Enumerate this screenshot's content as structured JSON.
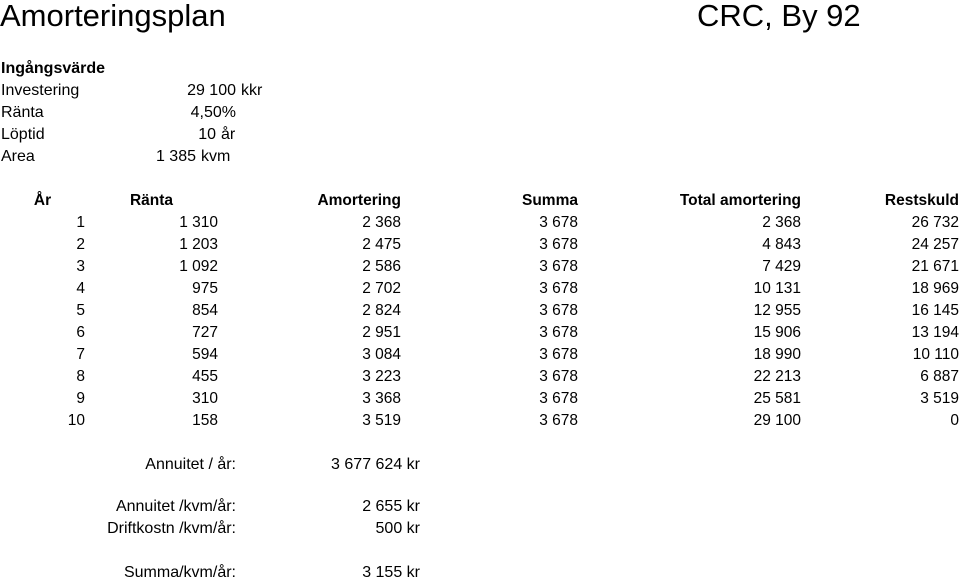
{
  "header": {
    "title": "Amorteringsplan",
    "project": "CRC, By 92"
  },
  "inputs": {
    "section_label": "Ingångsvärde",
    "rows": [
      {
        "label": "Investering",
        "value": "29 100",
        "unit": "kkr"
      },
      {
        "label": "Ränta",
        "value": "4,50%",
        "unit": ""
      },
      {
        "label": "Löptid",
        "value": "10",
        "unit": "år"
      },
      {
        "label": "Area",
        "value": "1 385",
        "unit": "kvm"
      }
    ]
  },
  "table": {
    "columns": [
      "År",
      "Ränta",
      "Amortering",
      "Summa",
      "Total amortering",
      "Restskuld"
    ],
    "rows": [
      [
        "1",
        "1 310",
        "2 368",
        "3 678",
        "2 368",
        "26 732"
      ],
      [
        "2",
        "1 203",
        "2 475",
        "3 678",
        "4 843",
        "24 257"
      ],
      [
        "3",
        "1 092",
        "2 586",
        "3 678",
        "7 429",
        "21 671"
      ],
      [
        "4",
        "975",
        "2 702",
        "3 678",
        "10 131",
        "18 969"
      ],
      [
        "5",
        "854",
        "2 824",
        "3 678",
        "12 955",
        "16 145"
      ],
      [
        "6",
        "727",
        "2 951",
        "3 678",
        "15 906",
        "13 194"
      ],
      [
        "7",
        "594",
        "3 084",
        "3 678",
        "18 990",
        "10 110"
      ],
      [
        "8",
        "455",
        "3 223",
        "3 678",
        "22 213",
        "6 887"
      ],
      [
        "9",
        "310",
        "3 368",
        "3 678",
        "25 581",
        "3 519"
      ],
      [
        "10",
        "158",
        "3 519",
        "3 678",
        "29 100",
        "0"
      ]
    ]
  },
  "summary": {
    "annuitet_ar": {
      "label": "Annuitet / år:",
      "value": "3 677 624 kr"
    },
    "annuitet_kvm": {
      "label": "Annuitet /kvm/år:",
      "value": "2 655 kr"
    },
    "driftkostn": {
      "label": "Driftkostn /kvm/år:",
      "value": "500 kr"
    },
    "summa_kvm": {
      "label": "Summa/kvm/år:",
      "value": "3 155 kr"
    }
  }
}
